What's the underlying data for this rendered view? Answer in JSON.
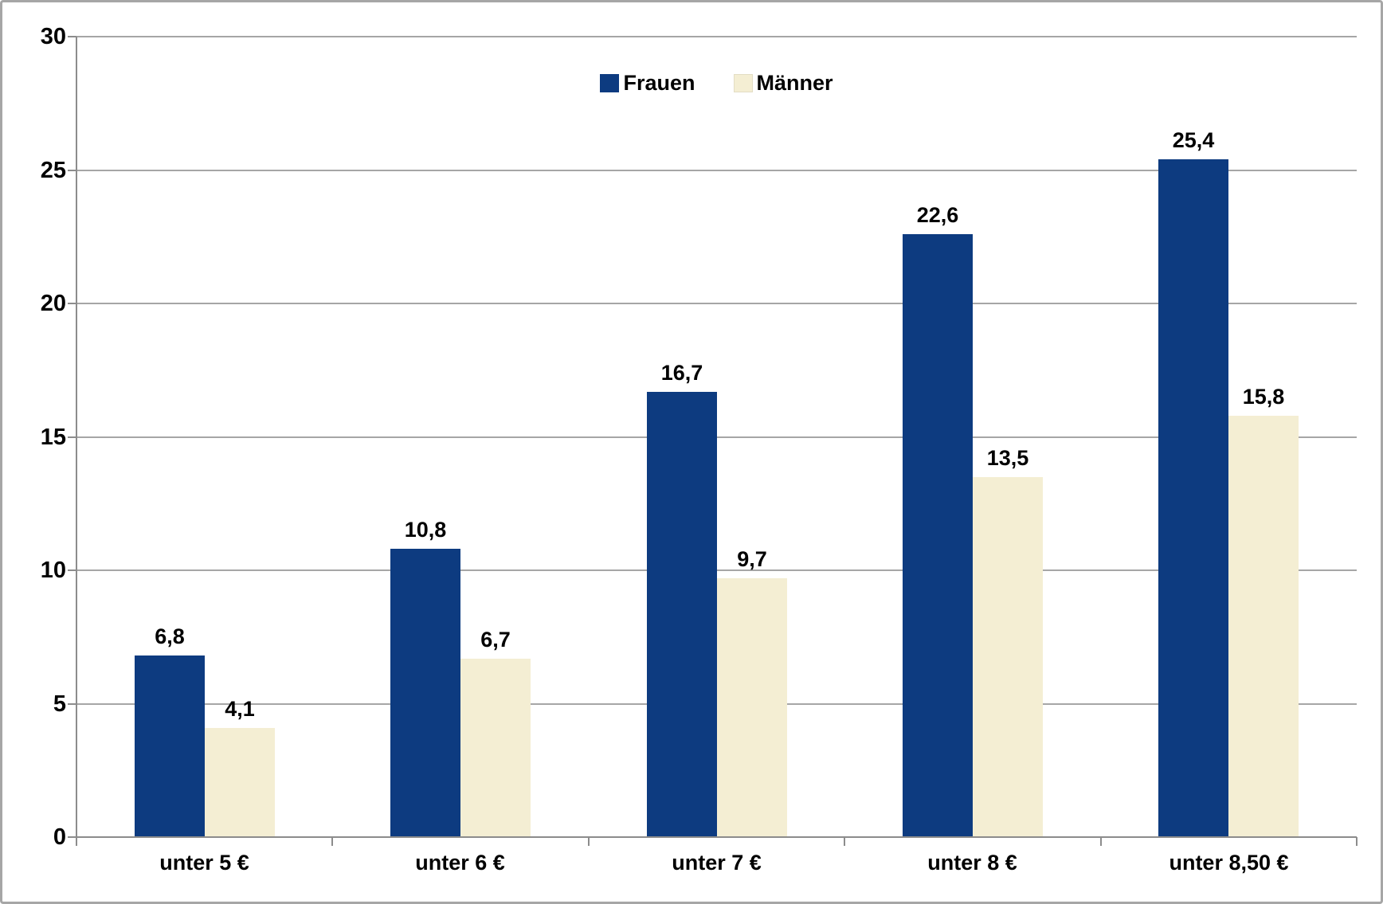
{
  "chart_data": {
    "type": "bar",
    "title": "",
    "xlabel": "",
    "ylabel": "",
    "categories": [
      "unter 5 €",
      "unter 6 €",
      "unter 7 €",
      "unter 8 €",
      "unter 8,50 €"
    ],
    "series": [
      {
        "name": "Frauen",
        "color": "#0d3b80",
        "values": [
          6.8,
          10.8,
          16.7,
          22.6,
          25.4
        ],
        "value_labels": [
          "6,8",
          "10,8",
          "16,7",
          "22,6",
          "25,4"
        ]
      },
      {
        "name": "Männer",
        "color": "#f4eed3",
        "values": [
          4.1,
          6.7,
          9.7,
          13.5,
          15.8
        ],
        "value_labels": [
          "4,1",
          "6,7",
          "9,7",
          "13,5",
          "15,8"
        ]
      }
    ],
    "y_axis": {
      "min": 0,
      "max": 30,
      "tick_interval": 5,
      "tick_labels": [
        "0",
        "5",
        "10",
        "15",
        "20",
        "25",
        "30"
      ]
    },
    "grid": true,
    "legend_position": "top-center",
    "colors": {
      "gridline": "#a6a6a6",
      "axis": "#8c8c8c",
      "text": "#000000",
      "background": "#ffffff",
      "border": "#a6a6a6"
    }
  }
}
